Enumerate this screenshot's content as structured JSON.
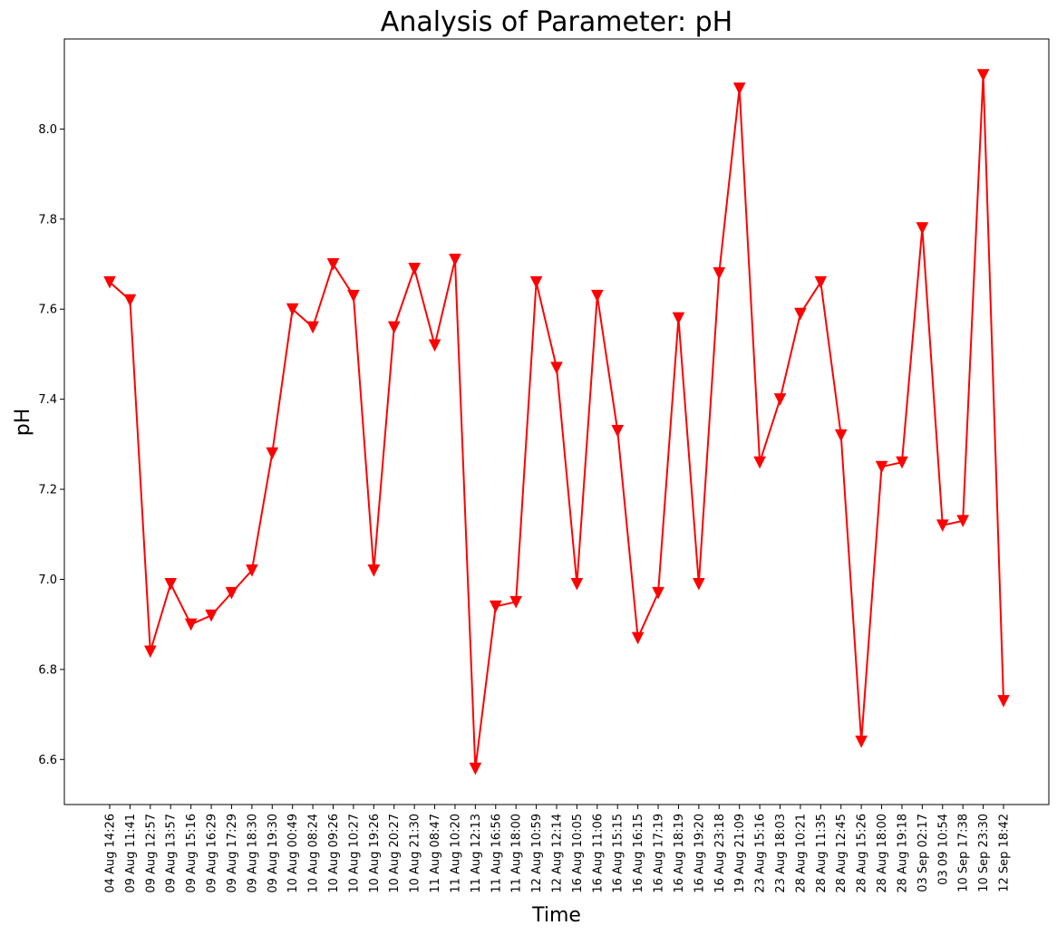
{
  "chart_data": {
    "type": "line",
    "title": "Analysis of Parameter: pH",
    "xlabel": "Time",
    "ylabel": "pH",
    "ylim": [
      6.5,
      8.2
    ],
    "yticks": [
      6.6,
      6.8,
      7.0,
      7.2,
      7.4,
      7.6,
      7.8,
      8.0
    ],
    "ytick_labels": [
      "6.6",
      "6.8",
      "7.0",
      "7.2",
      "7.4",
      "7.6",
      "7.8",
      "8.0"
    ],
    "grid": false,
    "series": [
      {
        "color": "#ff0000",
        "marker": "triangle-down",
        "values": [
          7.66,
          7.62,
          6.84,
          6.99,
          6.9,
          6.92,
          6.97,
          7.02,
          7.28,
          7.6,
          7.56,
          7.7,
          7.63,
          7.02,
          7.56,
          7.69,
          7.52,
          7.71,
          6.58,
          6.94,
          6.95,
          7.66,
          7.47,
          6.99,
          7.63,
          7.33,
          6.87,
          6.97,
          7.58,
          6.99,
          7.68,
          8.09,
          7.26,
          7.4,
          7.59,
          7.66,
          7.32,
          6.64,
          7.25,
          7.26,
          7.78,
          7.12,
          7.13,
          8.12,
          6.73
        ]
      }
    ],
    "categories": [
      "04 Aug 14:26",
      "09 Aug 11:41",
      "09 Aug 12:57",
      "09 Aug 13:57",
      "09 Aug 15:16",
      "09 Aug 16:29",
      "09 Aug 17:29",
      "09 Aug 18:30",
      "09 Aug 19:30",
      "10 Aug 00:49",
      "10 Aug 08:24",
      "10 Aug 09:26",
      "10 Aug 10:27",
      "10 Aug 19:26",
      "10 Aug 20:27",
      "10 Aug 21:30",
      "11 Aug 08:47",
      "11 Aug 10:20",
      "11 Aug 12:13",
      "11 Aug 16:56",
      "11 Aug 18:00",
      "12 Aug 10:59",
      "12 Aug 12:14",
      "16 Aug 10:05",
      "16 Aug 11:06",
      "16 Aug 15:15",
      "16 Aug 16:15",
      "16 Aug 17:19",
      "16 Aug 18:19",
      "16 Aug 19:20",
      "16 Aug 23:18",
      "19 Aug 21:09",
      "23 Aug 15:16",
      "23 Aug 18:03",
      "28 Aug 10:21",
      "28 Aug 11:35",
      "28 Aug 12:45",
      "28 Aug 15:26",
      "28 Aug 18:00",
      "28 Aug 19:18",
      "03 Sep 02:17",
      "03 09 10:54",
      "10 Sep 17:38",
      "10 Sep 23:30",
      "12 Sep 18:42"
    ]
  }
}
